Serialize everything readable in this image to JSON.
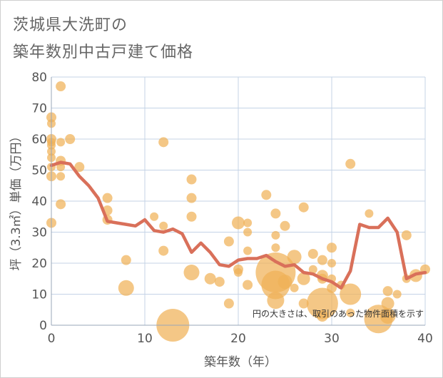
{
  "page": {
    "title_line1": "茨城県大洗町の",
    "title_line2": "築年数別中古戸建て価格"
  },
  "chart_data": {
    "type": "scatter",
    "title": "茨城県大洗町の築年数別中古戸建て価格",
    "xlabel": "築年数（年）",
    "ylabel": "坪（3.3㎡）単価（万円）",
    "xlim": [
      0,
      40
    ],
    "ylim": [
      0,
      80
    ],
    "xticks": [
      "0",
      "10",
      "20",
      "30",
      "40"
    ],
    "yticks": [
      "0",
      "10",
      "20",
      "30",
      "40",
      "50",
      "60",
      "70",
      "80"
    ],
    "grid": true,
    "note": "円の大きさは、取引のあった物件面積を示す",
    "colors": {
      "bubble": "#f0b257",
      "line": "#d9705a",
      "grid": "#c4d3e6"
    },
    "bubbles": [
      {
        "x": 0,
        "y": 67,
        "s": 7
      },
      {
        "x": 0,
        "y": 65,
        "s": 6
      },
      {
        "x": 0,
        "y": 60,
        "s": 7
      },
      {
        "x": 0,
        "y": 59,
        "s": 6
      },
      {
        "x": 0,
        "y": 58,
        "s": 6
      },
      {
        "x": 0,
        "y": 56,
        "s": 6
      },
      {
        "x": 0,
        "y": 54,
        "s": 6
      },
      {
        "x": 0,
        "y": 51,
        "s": 6
      },
      {
        "x": 0,
        "y": 48,
        "s": 7
      },
      {
        "x": 0,
        "y": 33,
        "s": 7
      },
      {
        "x": 1,
        "y": 77,
        "s": 7
      },
      {
        "x": 1,
        "y": 59,
        "s": 6
      },
      {
        "x": 1,
        "y": 53,
        "s": 7
      },
      {
        "x": 1,
        "y": 51,
        "s": 6
      },
      {
        "x": 1,
        "y": 48,
        "s": 6
      },
      {
        "x": 1,
        "y": 39,
        "s": 7
      },
      {
        "x": 2,
        "y": 60,
        "s": 7
      },
      {
        "x": 3,
        "y": 51,
        "s": 7
      },
      {
        "x": 6,
        "y": 41,
        "s": 7
      },
      {
        "x": 6,
        "y": 37,
        "s": 7
      },
      {
        "x": 6,
        "y": 34,
        "s": 7
      },
      {
        "x": 8,
        "y": 21,
        "s": 7
      },
      {
        "x": 8,
        "y": 12,
        "s": 11
      },
      {
        "x": 11,
        "y": 35,
        "s": 6
      },
      {
        "x": 12,
        "y": 59,
        "s": 7
      },
      {
        "x": 12,
        "y": 32,
        "s": 6
      },
      {
        "x": 12,
        "y": 24,
        "s": 7
      },
      {
        "x": 13,
        "y": 0,
        "s": 23
      },
      {
        "x": 15,
        "y": 47,
        "s": 7
      },
      {
        "x": 15,
        "y": 41,
        "s": 7
      },
      {
        "x": 15,
        "y": 35,
        "s": 7
      },
      {
        "x": 15,
        "y": 17,
        "s": 11
      },
      {
        "x": 17,
        "y": 15,
        "s": 8
      },
      {
        "x": 18,
        "y": 14,
        "s": 7
      },
      {
        "x": 19,
        "y": 27,
        "s": 7
      },
      {
        "x": 19,
        "y": 7,
        "s": 7
      },
      {
        "x": 20,
        "y": 33,
        "s": 9
      },
      {
        "x": 20,
        "y": 18,
        "s": 7
      },
      {
        "x": 20,
        "y": 17,
        "s": 6
      },
      {
        "x": 21,
        "y": 33,
        "s": 6
      },
      {
        "x": 21,
        "y": 30,
        "s": 6
      },
      {
        "x": 21,
        "y": 24,
        "s": 6
      },
      {
        "x": 21,
        "y": 13,
        "s": 7
      },
      {
        "x": 23,
        "y": 42,
        "s": 7
      },
      {
        "x": 24,
        "y": 36,
        "s": 7
      },
      {
        "x": 24,
        "y": 29,
        "s": 6
      },
      {
        "x": 24,
        "y": 25,
        "s": 6
      },
      {
        "x": 24,
        "y": 17,
        "s": 28
      },
      {
        "x": 24,
        "y": 13,
        "s": 20
      },
      {
        "x": 24,
        "y": 8,
        "s": 12
      },
      {
        "x": 25,
        "y": 32,
        "s": 7
      },
      {
        "x": 25,
        "y": 14,
        "s": 10
      },
      {
        "x": 26,
        "y": 22,
        "s": 10
      },
      {
        "x": 26,
        "y": 12,
        "s": 6
      },
      {
        "x": 27,
        "y": 38,
        "s": 7
      },
      {
        "x": 27,
        "y": 15,
        "s": 9
      },
      {
        "x": 27,
        "y": 7,
        "s": 7
      },
      {
        "x": 28,
        "y": 23,
        "s": 7
      },
      {
        "x": 28,
        "y": 18,
        "s": 6
      },
      {
        "x": 29,
        "y": 21,
        "s": 7
      },
      {
        "x": 29,
        "y": 16,
        "s": 8
      },
      {
        "x": 29,
        "y": 15,
        "s": 7
      },
      {
        "x": 29,
        "y": 7,
        "s": 22
      },
      {
        "x": 29,
        "y": 3,
        "s": 8
      },
      {
        "x": 30,
        "y": 25,
        "s": 7
      },
      {
        "x": 30,
        "y": 20,
        "s": 6
      },
      {
        "x": 30,
        "y": 15,
        "s": 6
      },
      {
        "x": 30,
        "y": 12,
        "s": 7
      },
      {
        "x": 31,
        "y": 13,
        "s": 6
      },
      {
        "x": 32,
        "y": 52,
        "s": 7
      },
      {
        "x": 32,
        "y": 10,
        "s": 15
      },
      {
        "x": 32,
        "y": 4,
        "s": 6
      },
      {
        "x": 34,
        "y": 36,
        "s": 6
      },
      {
        "x": 35,
        "y": 2,
        "s": 20
      },
      {
        "x": 36,
        "y": 11,
        "s": 7
      },
      {
        "x": 36,
        "y": 7,
        "s": 9
      },
      {
        "x": 36,
        "y": 3,
        "s": 11
      },
      {
        "x": 37,
        "y": 10,
        "s": 6
      },
      {
        "x": 38,
        "y": 29,
        "s": 7
      },
      {
        "x": 38,
        "y": 15,
        "s": 6
      },
      {
        "x": 39,
        "y": 16,
        "s": 9
      },
      {
        "x": 40,
        "y": 18,
        "s": 7
      }
    ],
    "trend": {
      "x": [
        0,
        1,
        2,
        3,
        4,
        5,
        6,
        7,
        8,
        9,
        10,
        11,
        12,
        13,
        14,
        15,
        16,
        17,
        18,
        19,
        20,
        21,
        22,
        23,
        24,
        25,
        26,
        27,
        28,
        29,
        30,
        31,
        32,
        33,
        34,
        35,
        36,
        37,
        38,
        39,
        40
      ],
      "y": [
        51.5,
        52.5,
        52,
        48,
        45,
        41,
        33.5,
        33,
        32.5,
        32,
        34,
        30.5,
        30,
        31,
        29.5,
        23.5,
        26.5,
        23.5,
        19.5,
        19,
        21,
        21.5,
        21.5,
        22.5,
        20.5,
        19,
        19.5,
        17,
        16.5,
        15,
        14,
        12,
        17.5,
        32.5,
        31.5,
        31.5,
        34.5,
        30,
        15,
        16.5,
        17
      ]
    }
  }
}
